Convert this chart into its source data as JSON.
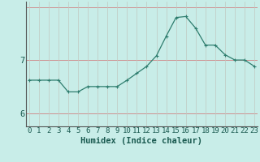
{
  "title": "",
  "xlabel": "Humidex (Indice chaleur)",
  "ylabel": "",
  "x_values": [
    0,
    1,
    2,
    3,
    4,
    5,
    6,
    7,
    8,
    9,
    10,
    11,
    12,
    13,
    14,
    15,
    16,
    17,
    18,
    19,
    20,
    21,
    22,
    23
  ],
  "y_values": [
    6.62,
    6.62,
    6.62,
    6.62,
    6.4,
    6.4,
    6.5,
    6.5,
    6.5,
    6.5,
    6.62,
    6.75,
    6.88,
    7.08,
    7.45,
    7.8,
    7.82,
    7.6,
    7.28,
    7.28,
    7.1,
    7.0,
    7.0,
    6.88
  ],
  "line_color": "#2e7d6e",
  "marker": ".",
  "marker_color": "#2e7d6e",
  "bg_color": "#c8ede8",
  "grid_color_h": "#d08080",
  "grid_color_v": "#c0c8c0",
  "yticks": [
    6,
    7
  ],
  "xticks": [
    0,
    1,
    2,
    3,
    4,
    5,
    6,
    7,
    8,
    9,
    10,
    11,
    12,
    13,
    14,
    15,
    16,
    17,
    18,
    19,
    20,
    21,
    22,
    23
  ],
  "xlim": [
    -0.3,
    23.3
  ],
  "ylim": [
    5.75,
    8.1
  ],
  "xlabel_fontsize": 7.5,
  "tick_fontsize": 6.5,
  "xlabel_bold": true
}
